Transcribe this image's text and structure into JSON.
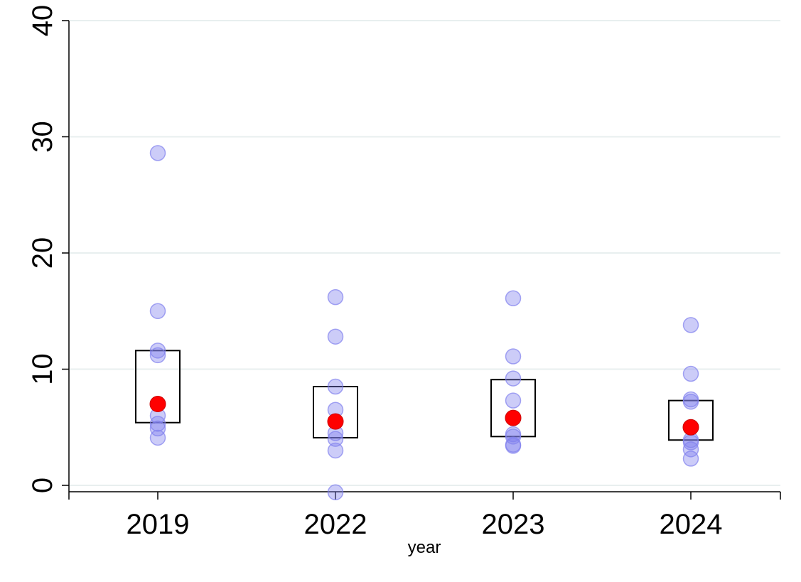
{
  "chart_data": {
    "type": "scatter",
    "title": "",
    "xlabel": "year",
    "ylabel": "",
    "ylim": [
      -0.6,
      40
    ],
    "yticks": [
      0,
      10,
      20,
      30,
      40
    ],
    "grid": true,
    "categories": [
      "2019",
      "2022",
      "2023",
      "2024"
    ],
    "points": [
      [
        28.6,
        15.0,
        11.6,
        11.2,
        6.0,
        5.3,
        4.9,
        4.1
      ],
      [
        16.2,
        12.8,
        8.5,
        6.5,
        4.5,
        4.0,
        3.0,
        -0.6
      ],
      [
        16.1,
        11.1,
        9.2,
        7.3,
        4.4,
        4.2,
        3.5,
        3.4
      ],
      [
        13.8,
        9.6,
        7.4,
        7.2,
        3.9,
        3.7,
        3.1,
        2.3
      ]
    ],
    "means": [
      7.0,
      5.5,
      5.8,
      5.0
    ],
    "boxes": [
      {
        "low": 5.4,
        "high": 11.6
      },
      {
        "low": 4.1,
        "high": 8.5
      },
      {
        "low": 4.2,
        "high": 9.1
      },
      {
        "low": 3.9,
        "high": 7.3
      }
    ],
    "colors": {
      "points": "#8080ee",
      "point_fill_opacity": 0.4,
      "mean": "#ff0000",
      "mean_stroke": "#cc0000",
      "box": "#000000",
      "grid": "#e8efef"
    }
  }
}
